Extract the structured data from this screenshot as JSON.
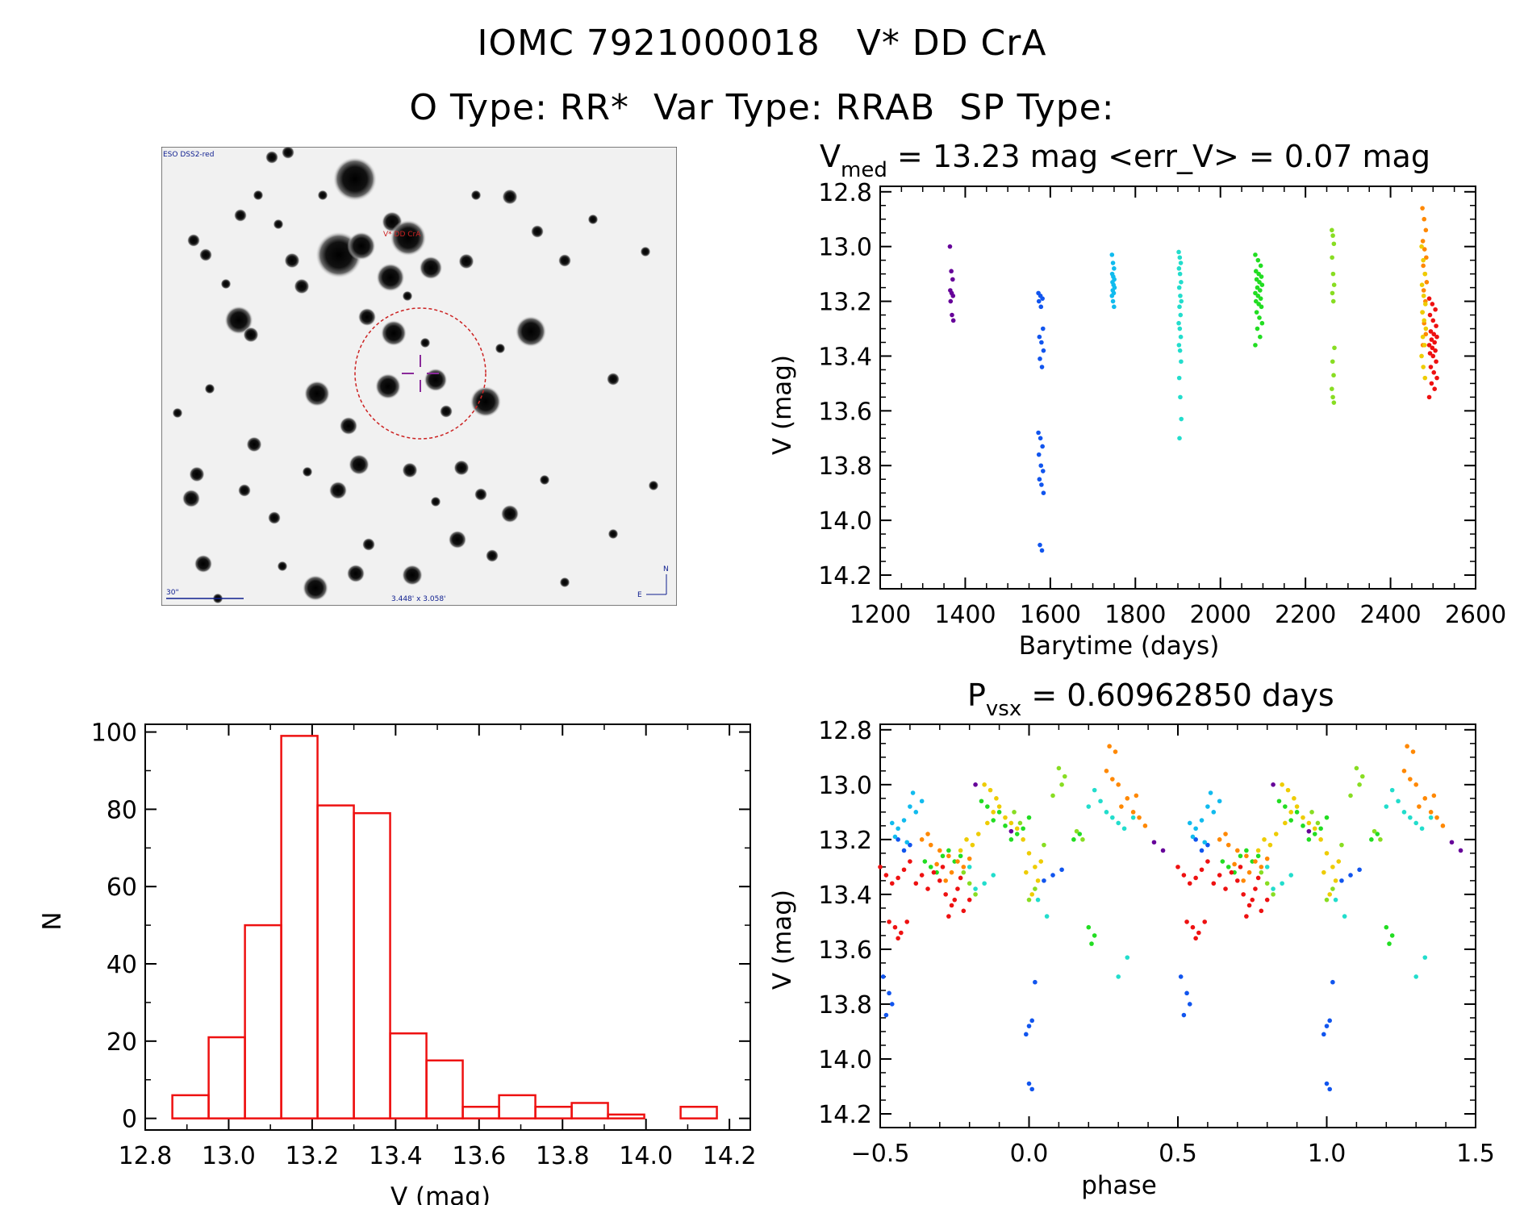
{
  "header": {
    "line1": "IOMC 7921000018   V* DD CrA",
    "line2": "O Type: RR*  Var Type: RRAB  SP Type:"
  },
  "finding_chart": {
    "survey_label": "ESO DSS2-red",
    "target_label": "V* DD CrA",
    "scale_label": "30\"",
    "fov_label": "3.448' x 3.058'",
    "north_label": "N",
    "east_label": "E"
  },
  "colors": {
    "histogram": "#ee1111",
    "circle": "#cc2222",
    "crosshair": "#8a2a9a",
    "chart_text": "#102090"
  },
  "chart_data": [
    {
      "id": "lightcurve",
      "type": "scatter",
      "title_main": "V",
      "title_sub": "med",
      "title_rest": " = 13.23 mag <err_V> = 0.07 mag",
      "xlabel": "Barytime (days)",
      "ylabel": "V (mag)",
      "xlim": [
        1200,
        2600
      ],
      "ylim": [
        14.25,
        12.78
      ],
      "xticks": [
        1200,
        1400,
        1600,
        1800,
        2000,
        2200,
        2400,
        2600
      ],
      "yticks": [
        12.8,
        13.0,
        13.2,
        13.4,
        13.6,
        13.8,
        14.0,
        14.2
      ],
      "series": [
        {
          "name": "season 1",
          "color": "#660099",
          "t0": 1368,
          "spread": 4,
          "v": [
            13.0,
            13.09,
            13.12,
            13.16,
            13.17,
            13.18,
            13.2,
            13.25,
            13.27
          ]
        },
        {
          "name": "season 2",
          "color": "#1155ee",
          "t0": 1578,
          "spread": 6,
          "v": [
            13.17,
            13.18,
            13.19,
            13.2,
            13.22,
            13.3,
            13.33,
            13.35,
            13.38,
            13.41,
            13.44,
            13.68,
            13.7,
            13.73,
            13.76,
            13.8,
            13.82,
            13.85,
            13.87,
            13.9,
            14.09,
            14.11
          ]
        },
        {
          "name": "season 3",
          "color": "#11bbee",
          "t0": 1748,
          "spread": 3,
          "v": [
            13.03,
            13.06,
            13.08,
            13.1,
            13.11,
            13.12,
            13.13,
            13.14,
            13.15,
            13.16,
            13.17,
            13.18,
            13.2,
            13.22
          ]
        },
        {
          "name": "season 4",
          "color": "#22ddcc",
          "t0": 1905,
          "spread": 3,
          "v": [
            13.02,
            13.04,
            13.06,
            13.08,
            13.1,
            13.13,
            13.15,
            13.18,
            13.2,
            13.22,
            13.25,
            13.28,
            13.3,
            13.33,
            13.36,
            13.38,
            13.42,
            13.48,
            13.55,
            13.63,
            13.7
          ]
        },
        {
          "name": "season 5",
          "color": "#22dd22",
          "t0": 2090,
          "spread": 8,
          "v": [
            13.03,
            13.05,
            13.07,
            13.09,
            13.1,
            13.11,
            13.12,
            13.13,
            13.14,
            13.15,
            13.16,
            13.17,
            13.18,
            13.19,
            13.2,
            13.21,
            13.22,
            13.24,
            13.26,
            13.28,
            13.3,
            13.33,
            13.36
          ]
        },
        {
          "name": "season 6",
          "color": "#88dd22",
          "t0": 2265,
          "spread": 3,
          "v": [
            12.94,
            12.96,
            12.99,
            13.04,
            13.1,
            13.14,
            13.17,
            13.2,
            13.37,
            13.42,
            13.47,
            13.52,
            13.55,
            13.57
          ]
        },
        {
          "name": "season 7",
          "color": "#ff8800",
          "t0": 2480,
          "spread": 5,
          "v": [
            12.86,
            12.9,
            12.94,
            12.98,
            13.01,
            13.04,
            13.07,
            13.1,
            13.13,
            13.16,
            13.2,
            13.24,
            13.28,
            13.32,
            13.36
          ]
        },
        {
          "name": "season 8",
          "color": "#eecc00",
          "t0": 2478,
          "spread": 5,
          "v": [
            13.0,
            13.05,
            13.1,
            13.14,
            13.18,
            13.21,
            13.24,
            13.27,
            13.3,
            13.33,
            13.36,
            13.4,
            13.44,
            13.48
          ]
        },
        {
          "name": "season 9",
          "color": "#ee1111",
          "t0": 2500,
          "spread": 9,
          "v": [
            13.19,
            13.21,
            13.23,
            13.25,
            13.27,
            13.29,
            13.31,
            13.32,
            13.33,
            13.34,
            13.35,
            13.36,
            13.37,
            13.38,
            13.39,
            13.4,
            13.42,
            13.44,
            13.46,
            13.48,
            13.5,
            13.52,
            13.55
          ]
        }
      ]
    },
    {
      "id": "histogram",
      "type": "bar",
      "xlabel": "V (mag)",
      "ylabel": "N",
      "xlim": [
        12.8,
        14.25
      ],
      "ylim": [
        -3,
        102
      ],
      "xticks": [
        12.8,
        13.0,
        13.2,
        13.4,
        13.6,
        13.8,
        14.0,
        14.2
      ],
      "yticks": [
        0,
        20,
        40,
        60,
        80,
        100
      ],
      "bin_width": 0.0869,
      "bin_starts": [
        12.865,
        12.952,
        13.039,
        13.126,
        13.213,
        13.3,
        13.387,
        13.474,
        13.561,
        13.648,
        13.735,
        13.822,
        13.909,
        13.996,
        14.083
      ],
      "values": [
        6,
        21,
        50,
        99,
        81,
        79,
        22,
        15,
        3,
        6,
        3,
        4,
        1,
        0,
        3
      ]
    },
    {
      "id": "phased",
      "type": "scatter",
      "title_main": "P",
      "title_sub": "vsx",
      "title_rest": " = 0.60962850 days",
      "xlabel": "phase",
      "ylabel": "V (mag)",
      "xlim": [
        -0.5,
        1.5
      ],
      "ylim": [
        14.25,
        12.78
      ],
      "xticks": [
        -0.5,
        0.0,
        0.5,
        1.0,
        1.5
      ],
      "xtick_labels": [
        "−0.5",
        "0.0",
        "0.5",
        "1.0",
        "1.5"
      ],
      "yticks": [
        12.8,
        13.0,
        13.2,
        13.4,
        13.6,
        13.8,
        14.0,
        14.2
      ],
      "series": [
        {
          "name": "season 1",
          "color": "#660099",
          "points": [
            [
              -0.18,
              13.0
            ],
            [
              -0.06,
              13.17
            ],
            [
              0.42,
              13.21
            ],
            [
              0.45,
              13.24
            ]
          ]
        },
        {
          "name": "season 2",
          "color": "#1155ee",
          "points": [
            [
              -0.49,
              13.7
            ],
            [
              -0.47,
              13.76
            ],
            [
              -0.46,
              13.8
            ],
            [
              -0.48,
              13.84
            ],
            [
              0.0,
              13.88
            ],
            [
              0.01,
              13.86
            ],
            [
              -0.01,
              13.91
            ],
            [
              0.0,
              14.09
            ],
            [
              0.01,
              14.11
            ],
            [
              0.02,
              13.72
            ],
            [
              0.08,
              13.33
            ],
            [
              0.11,
              13.31
            ],
            [
              -0.4,
              13.22
            ],
            [
              -0.42,
              13.24
            ],
            [
              -0.44,
              13.2
            ],
            [
              0.05,
              13.35
            ]
          ]
        },
        {
          "name": "season 3",
          "color": "#11bbee",
          "points": [
            [
              -0.4,
              13.08
            ],
            [
              -0.38,
              13.1
            ],
            [
              -0.42,
              13.13
            ],
            [
              -0.44,
              13.16
            ],
            [
              -0.46,
              13.14
            ],
            [
              -0.36,
              13.06
            ],
            [
              -0.39,
              13.03
            ],
            [
              -0.45,
              13.19
            ],
            [
              -0.41,
              13.21
            ]
          ]
        },
        {
          "name": "season 4",
          "color": "#22ddcc",
          "points": [
            [
              0.22,
              13.02
            ],
            [
              0.24,
              13.06
            ],
            [
              0.26,
              13.1
            ],
            [
              0.28,
              13.12
            ],
            [
              0.3,
              13.14
            ],
            [
              0.32,
              13.16
            ],
            [
              0.35,
              13.12
            ],
            [
              0.2,
              13.08
            ],
            [
              -0.15,
              13.36
            ],
            [
              -0.2,
              13.3
            ],
            [
              -0.18,
              13.38
            ],
            [
              -0.12,
              13.33
            ],
            [
              0.3,
              13.7
            ],
            [
              0.33,
              13.63
            ],
            [
              0.06,
              13.48
            ],
            [
              0.03,
              13.42
            ]
          ]
        },
        {
          "name": "season 5",
          "color": "#22dd22",
          "points": [
            [
              -0.35,
              13.28
            ],
            [
              -0.33,
              13.3
            ],
            [
              -0.31,
              13.32
            ],
            [
              -0.29,
              13.26
            ],
            [
              -0.27,
              13.24
            ],
            [
              -0.1,
              13.1
            ],
            [
              -0.12,
              13.13
            ],
            [
              -0.08,
              13.15
            ],
            [
              -0.06,
              13.2
            ],
            [
              0.2,
              13.52
            ],
            [
              0.22,
              13.55
            ],
            [
              0.21,
              13.58
            ],
            [
              0.0,
              13.12
            ],
            [
              -0.02,
              13.16
            ],
            [
              -0.04,
              13.18
            ],
            [
              -0.14,
              13.08
            ],
            [
              -0.16,
              13.06
            ],
            [
              0.15,
              13.2
            ],
            [
              0.17,
              13.18
            ],
            [
              -0.23,
              13.26
            ],
            [
              -0.25,
              13.28
            ]
          ]
        },
        {
          "name": "season 6",
          "color": "#88dd22",
          "points": [
            [
              0.1,
              12.94
            ],
            [
              0.12,
              12.97
            ],
            [
              0.11,
              13.0
            ],
            [
              0.08,
              13.04
            ],
            [
              -0.05,
              13.1
            ],
            [
              -0.03,
              13.14
            ],
            [
              0.16,
              13.17
            ],
            [
              0.18,
              13.2
            ],
            [
              -0.18,
              13.4
            ],
            [
              -0.2,
              13.36
            ],
            [
              0.0,
              13.42
            ],
            [
              0.02,
              13.38
            ],
            [
              -0.22,
              13.32
            ],
            [
              0.05,
              13.22
            ]
          ]
        },
        {
          "name": "season 7",
          "color": "#ff8800",
          "points": [
            [
              0.27,
              12.86
            ],
            [
              0.29,
              12.88
            ],
            [
              0.26,
              12.95
            ],
            [
              0.28,
              12.98
            ],
            [
              0.3,
              13.0
            ],
            [
              0.33,
              13.05
            ],
            [
              0.35,
              13.1
            ],
            [
              0.37,
              13.12
            ],
            [
              0.39,
              13.15
            ],
            [
              -0.36,
              13.2
            ],
            [
              -0.33,
              13.22
            ],
            [
              -0.3,
              13.24
            ],
            [
              -0.27,
              13.26
            ],
            [
              -0.24,
              13.28
            ],
            [
              -0.22,
              13.3
            ],
            [
              -0.2,
              13.27
            ],
            [
              -0.26,
              13.32
            ],
            [
              -0.28,
              13.35
            ],
            [
              -0.34,
              13.18
            ],
            [
              0.31,
              13.08
            ],
            [
              0.36,
              13.04
            ],
            [
              -0.31,
              13.29
            ]
          ]
        },
        {
          "name": "season 8",
          "color": "#eecc00",
          "points": [
            [
              -0.15,
              13.0
            ],
            [
              -0.13,
              13.02
            ],
            [
              -0.11,
              13.05
            ],
            [
              -0.1,
              13.08
            ],
            [
              -0.08,
              13.12
            ],
            [
              -0.06,
              13.14
            ],
            [
              -0.04,
              13.16
            ],
            [
              -0.02,
              13.2
            ],
            [
              0.0,
              13.25
            ],
            [
              0.02,
              13.3
            ],
            [
              0.03,
              13.35
            ],
            [
              0.01,
              13.4
            ],
            [
              -0.12,
              13.1
            ],
            [
              -0.17,
              13.18
            ],
            [
              -0.19,
              13.22
            ],
            [
              -0.21,
              13.2
            ],
            [
              -0.23,
              13.24
            ],
            [
              -0.14,
              13.14
            ],
            [
              0.04,
              13.28
            ],
            [
              -0.01,
              13.32
            ]
          ]
        },
        {
          "name": "season 9",
          "color": "#ee1111",
          "points": [
            [
              -0.5,
              13.3
            ],
            [
              -0.48,
              13.33
            ],
            [
              -0.46,
              13.36
            ],
            [
              -0.44,
              13.34
            ],
            [
              -0.42,
              13.31
            ],
            [
              -0.4,
              13.28
            ],
            [
              -0.38,
              13.36
            ],
            [
              -0.47,
              13.5
            ],
            [
              -0.45,
              13.52
            ],
            [
              -0.43,
              13.54
            ],
            [
              -0.41,
              13.5
            ],
            [
              -0.44,
              13.56
            ],
            [
              -0.3,
              13.35
            ],
            [
              -0.28,
              13.4
            ],
            [
              -0.26,
              13.44
            ],
            [
              -0.24,
              13.38
            ],
            [
              -0.22,
              13.46
            ],
            [
              -0.2,
              13.42
            ],
            [
              -0.27,
              13.48
            ],
            [
              -0.25,
              13.42
            ],
            [
              -0.23,
              13.34
            ],
            [
              -0.29,
              13.3
            ],
            [
              -0.36,
              13.33
            ],
            [
              -0.34,
              13.38
            ],
            [
              -0.32,
              13.32
            ]
          ]
        }
      ]
    }
  ]
}
